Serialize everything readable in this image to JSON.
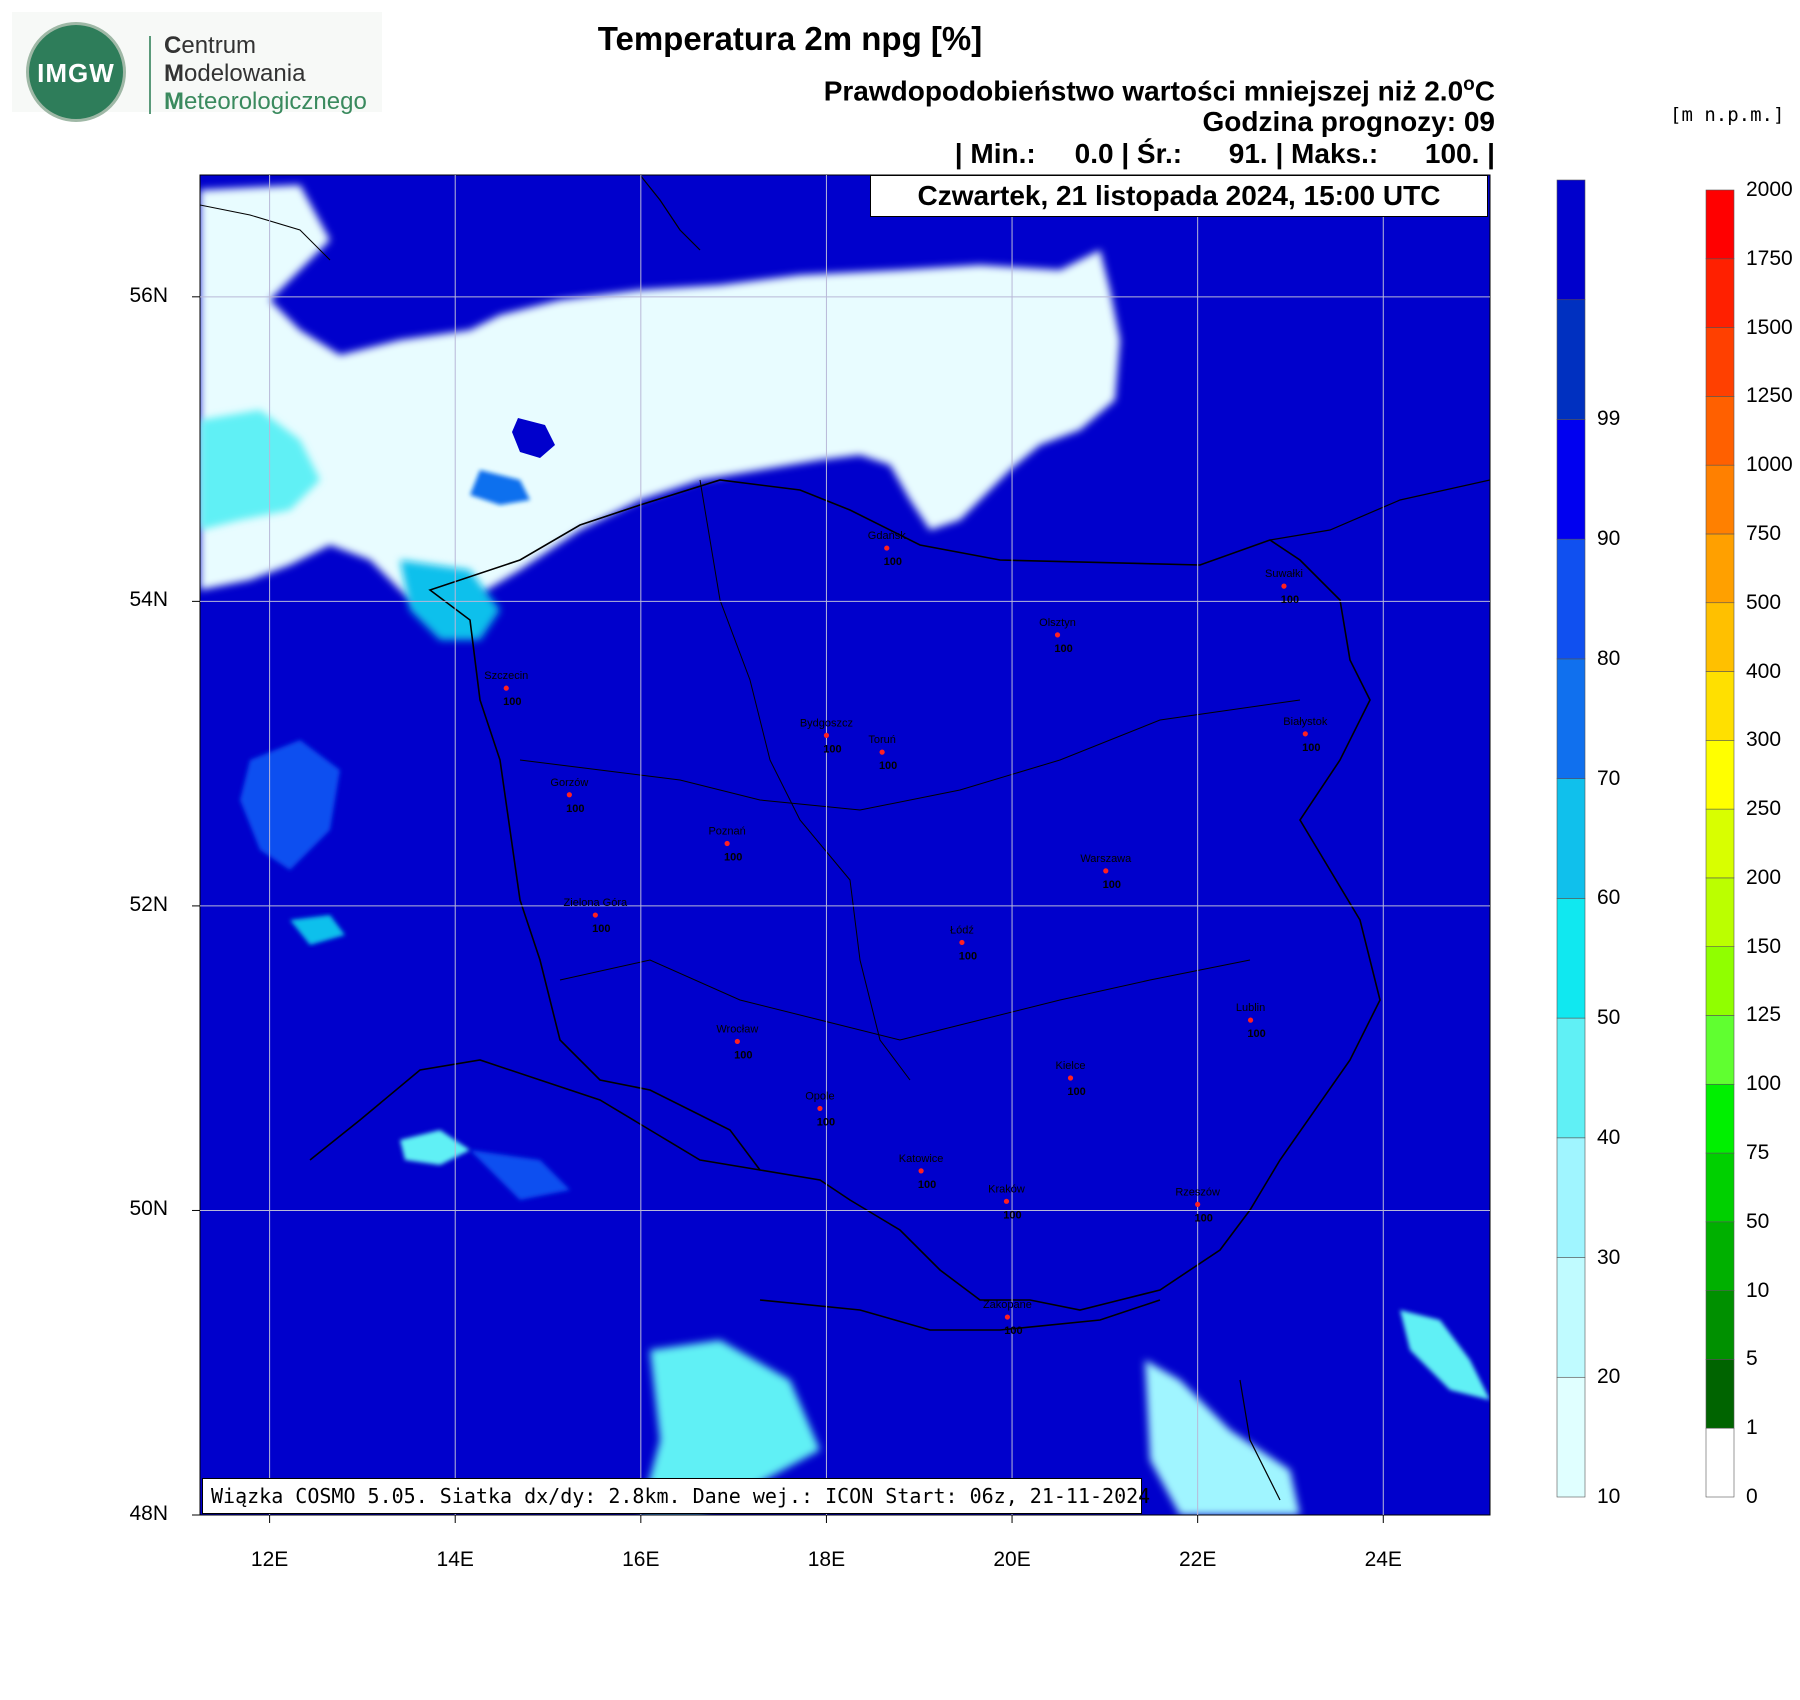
{
  "logo": {
    "badge_text": "IMGW",
    "line1_initial": "C",
    "line1_rest": "entrum",
    "line2_initial": "M",
    "line2_rest": "odelowania",
    "line3_initial": "M",
    "line3_rest": "eteorologicznego"
  },
  "header": {
    "title": "Temperatura 2m npg [%]",
    "subtitle_prefix": "Prawdopodobieństwo wartości mniejszej niż 2.0",
    "subtitle_unit": "C",
    "forecast_hour": "Godzina prognozy: 09",
    "stats": "| Min.:     0.0 | Śr.:      91. | Maks.:      100. |",
    "date": "Czwartek, 21 listopada 2024, 15:00 UTC",
    "footer": "Wiązka COSMO 5.05. Siatka dx/dy: 2.8km. Dane wej.: ICON Start: 06z, 21-11-2024",
    "elevation_units": "[m  n.p.m.]"
  },
  "axes": {
    "lat_labels": [
      "48N",
      "50N",
      "52N",
      "54N",
      "56N"
    ],
    "lon_labels": [
      "12E",
      "14E",
      "16E",
      "18E",
      "20E",
      "22E",
      "24E"
    ]
  },
  "colors": {
    "probability_scale": [
      "#e0ffff",
      "#c0fbff",
      "#a0f5ff",
      "#60f0f5",
      "#10e8f0",
      "#10c0ec",
      "#1070ee",
      "#1050f0",
      "#0000f0",
      "#0030c0",
      "#0000cc"
    ],
    "land_blue": "#0000cc",
    "elevation_scale": [
      "#ffffff",
      "#006400",
      "#009000",
      "#00b000",
      "#00d000",
      "#00f000",
      "#60ff30",
      "#90ff00",
      "#bbff00",
      "#d8ff00",
      "#ffff00",
      "#ffe000",
      "#ffc000",
      "#ffa000",
      "#ff8000",
      "#ff6000",
      "#ff4000",
      "#ff2000",
      "#ff0000"
    ]
  },
  "colorbar_probability": {
    "labels": [
      "10",
      "20",
      "30",
      "40",
      "50",
      "60",
      "70",
      "80",
      "90",
      "99"
    ]
  },
  "colorbar_elevation": {
    "labels": [
      "0",
      "1",
      "5",
      "10",
      "50",
      "75",
      "100",
      "125",
      "150",
      "200",
      "250",
      "300",
      "400",
      "500",
      "750",
      "1000",
      "1250",
      "1500",
      "1750",
      "2000"
    ]
  },
  "cities": [
    {
      "name": "Gdańsk",
      "value": "100",
      "lon": 18.65,
      "lat": 54.35
    },
    {
      "name": "Suwałki",
      "value": "100",
      "lon": 22.93,
      "lat": 54.1
    },
    {
      "name": "Olsztyn",
      "value": "100",
      "lon": 20.49,
      "lat": 53.78
    },
    {
      "name": "Szczecin",
      "value": "100",
      "lon": 14.55,
      "lat": 53.43
    },
    {
      "name": "Białystok",
      "value": "100",
      "lon": 23.16,
      "lat": 53.13
    },
    {
      "name": "Bydgoszcz",
      "value": "100",
      "lon": 18.0,
      "lat": 53.12
    },
    {
      "name": "Toruń",
      "value": "100",
      "lon": 18.6,
      "lat": 53.01
    },
    {
      "name": "Gorzów",
      "value": "100",
      "lon": 15.23,
      "lat": 52.73
    },
    {
      "name": "Poznań",
      "value": "100",
      "lon": 16.93,
      "lat": 52.41
    },
    {
      "name": "Warszawa",
      "value": "100",
      "lon": 21.01,
      "lat": 52.23
    },
    {
      "name": "Zielona Góra",
      "value": "100",
      "lon": 15.51,
      "lat": 51.94
    },
    {
      "name": "Łódź",
      "value": "100",
      "lon": 19.46,
      "lat": 51.76
    },
    {
      "name": "Lublin",
      "value": "100",
      "lon": 22.57,
      "lat": 51.25
    },
    {
      "name": "Wrocław",
      "value": "100",
      "lon": 17.04,
      "lat": 51.11
    },
    {
      "name": "Kielce",
      "value": "100",
      "lon": 20.63,
      "lat": 50.87
    },
    {
      "name": "Opole",
      "value": "100",
      "lon": 17.93,
      "lat": 50.67
    },
    {
      "name": "Katowice",
      "value": "100",
      "lon": 19.02,
      "lat": 50.26
    },
    {
      "name": "Kraków",
      "value": "100",
      "lon": 19.94,
      "lat": 50.06
    },
    {
      "name": "Rzeszów",
      "value": "100",
      "lon": 22.0,
      "lat": 50.04
    },
    {
      "name": "Zakopane",
      "value": "100",
      "lon": 19.95,
      "lat": 49.3
    }
  ]
}
